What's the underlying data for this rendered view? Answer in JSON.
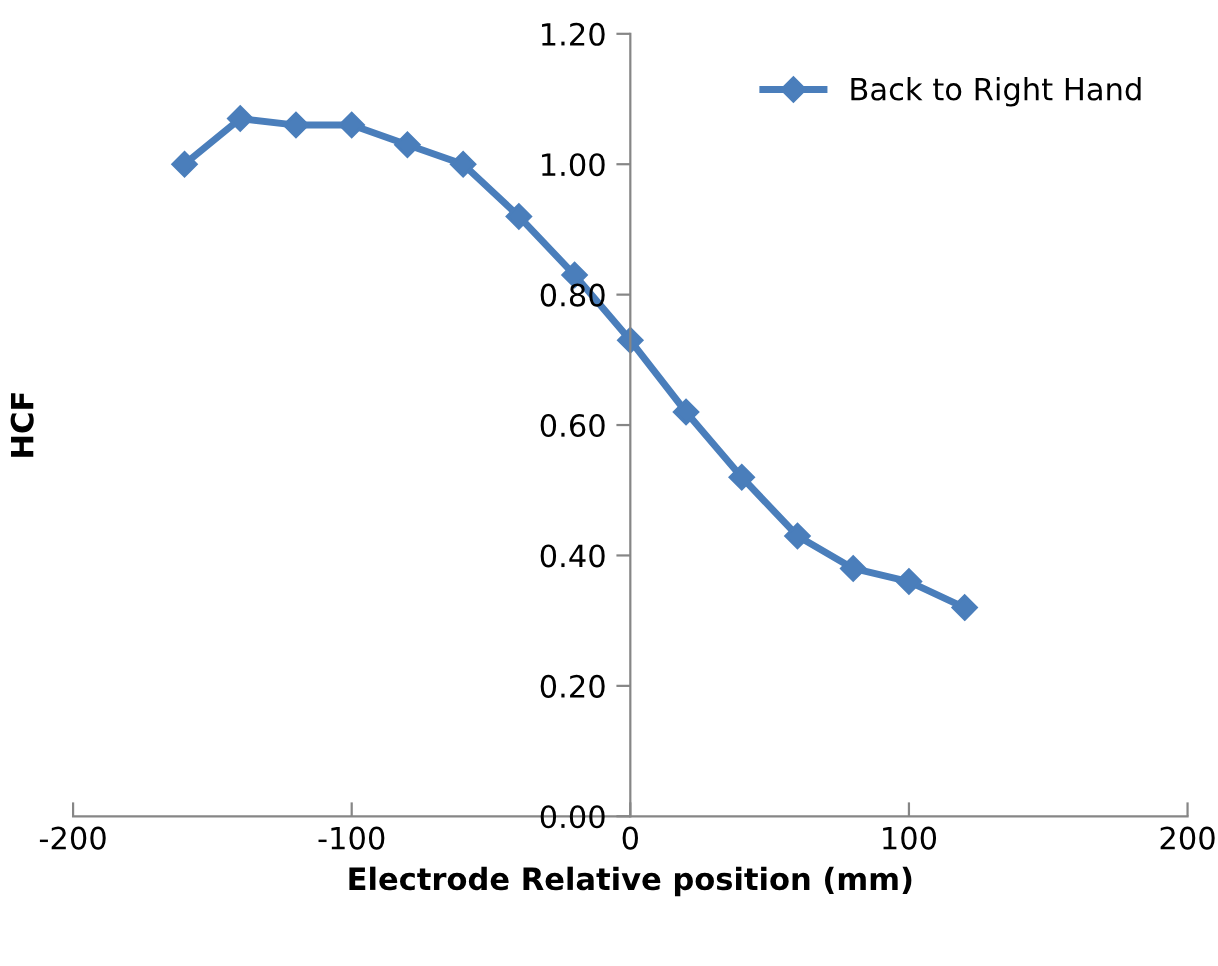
{
  "chart_data": {
    "type": "line",
    "xlabel": "Electrode Relative position (mm)",
    "ylabel": "HCF",
    "x": [
      -160,
      -140,
      -120,
      -100,
      -80,
      -60,
      -40,
      -20,
      0,
      20,
      40,
      60,
      80,
      100,
      120
    ],
    "series": [
      {
        "name": "Back to Right Hand",
        "color": "#4a7ebb",
        "values": [
          1.0,
          1.07,
          1.06,
          1.06,
          1.03,
          1.0,
          0.92,
          0.83,
          0.73,
          0.62,
          0.52,
          0.43,
          0.38,
          0.36,
          0.32
        ]
      }
    ],
    "xlim": [
      -200,
      200
    ],
    "xticks": [
      -200,
      -100,
      0,
      100,
      200
    ],
    "ylim": [
      0,
      1.2
    ],
    "yticks": [
      {
        "value": 0,
        "label": "0.00"
      },
      {
        "value": 0.2,
        "label": "0.20"
      },
      {
        "value": 0.4,
        "label": "0.40"
      },
      {
        "value": 0.6,
        "label": "0.60"
      },
      {
        "value": 0.8,
        "label": "0.80"
      },
      {
        "value": 1.0,
        "label": "1.00"
      },
      {
        "value": 1.2,
        "label": "1.20"
      }
    ],
    "marker": "diamond",
    "line_style": "solid",
    "legend": "top right",
    "grid": false
  }
}
